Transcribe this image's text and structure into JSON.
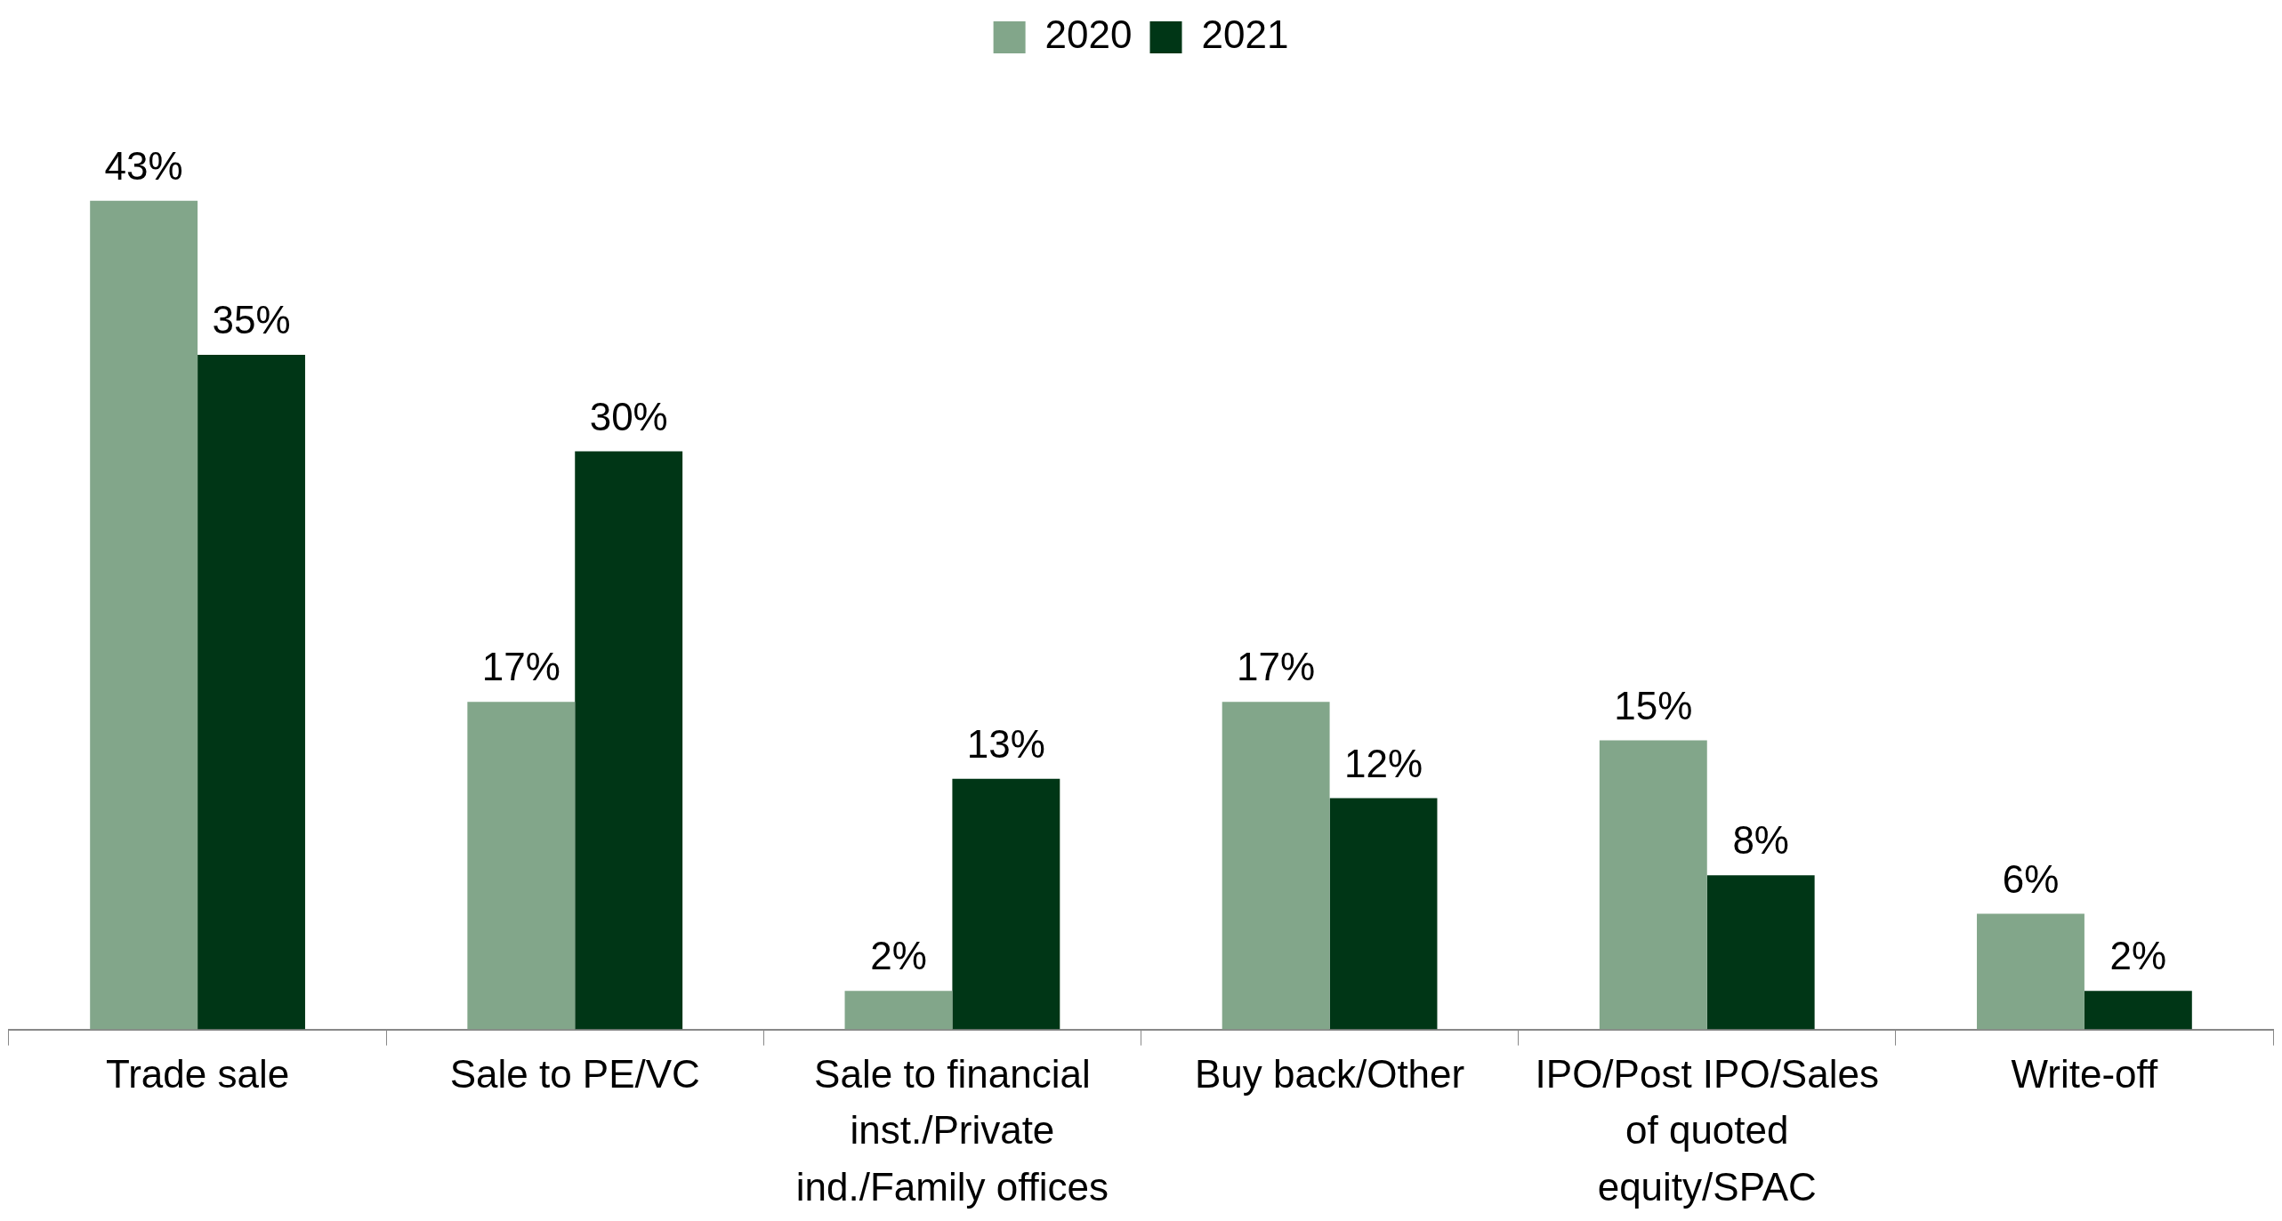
{
  "chart_data": {
    "type": "bar",
    "categories": [
      "Trade sale",
      "Sale to PE/VC",
      "Sale to financial inst./Private ind./Family offices",
      "Buy back/Other",
      "IPO/Post IPO/Sales of quoted equity/SPAC",
      "Write-off"
    ],
    "series": [
      {
        "name": "2020",
        "color": "#82a68a",
        "values": [
          43,
          17,
          2,
          17,
          15,
          6
        ],
        "value_labels": [
          "43%",
          "17%",
          "2%",
          "17%",
          "15%",
          "6%"
        ]
      },
      {
        "name": "2021",
        "color": "#003616",
        "values": [
          35,
          30,
          13,
          12,
          8,
          2
        ],
        "value_labels": [
          "35%",
          "30%",
          "13%",
          "12%",
          "8%",
          "2%"
        ]
      }
    ],
    "legend": "top",
    "grid": false
  }
}
